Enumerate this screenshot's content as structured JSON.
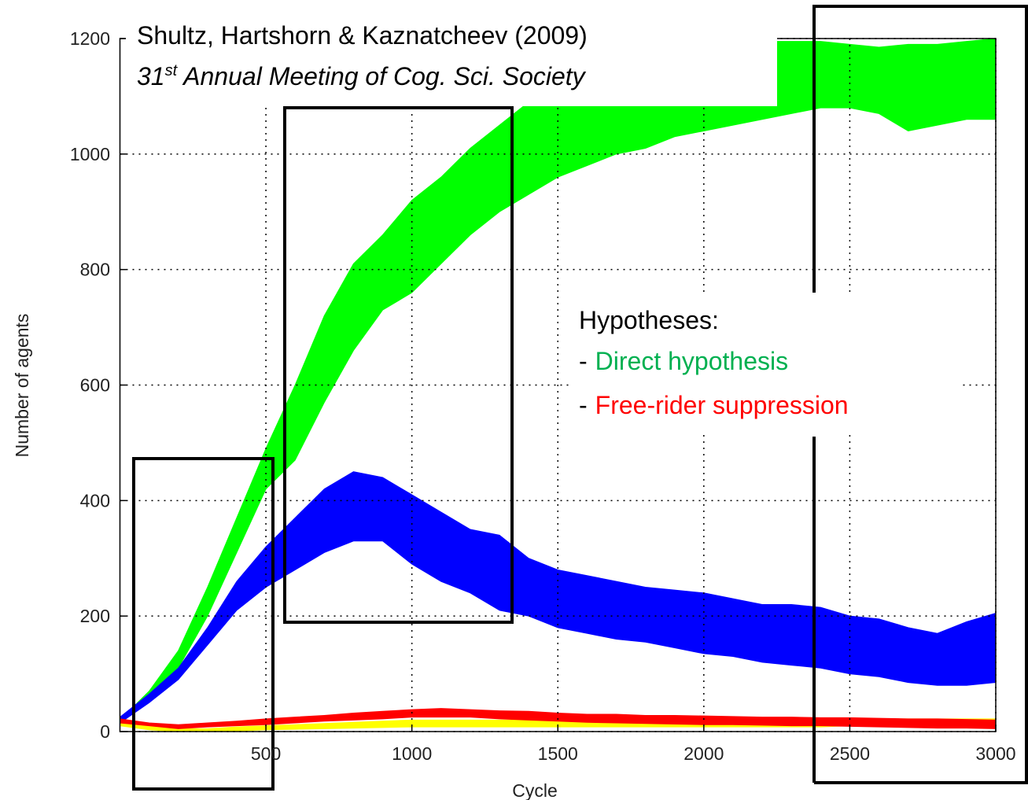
{
  "chart_data": {
    "type": "band",
    "xlabel": "Cycle",
    "ylabel": "Number of agents",
    "x": [
      0,
      100,
      200,
      300,
      400,
      500,
      600,
      700,
      800,
      900,
      1000,
      1100,
      1200,
      1300,
      1400,
      1500,
      1600,
      1700,
      1800,
      1900,
      2000,
      2100,
      2200,
      2300,
      2400,
      2500,
      2600,
      2700,
      2800,
      2900,
      3000
    ],
    "series": [
      {
        "color": "#00ff00",
        "values": [
          20,
          70,
          140,
          250,
          370,
          490,
          600,
          720,
          810,
          860,
          920,
          960,
          1010,
          1050,
          1090,
          1120,
          1140,
          1160,
          1175,
          1185,
          1190,
          1195,
          1195,
          1195,
          1195,
          1190,
          1185,
          1190,
          1190,
          1195,
          1200
        ],
        "lower": [
          15,
          55,
          110,
          200,
          310,
          420,
          470,
          570,
          660,
          730,
          760,
          810,
          860,
          900,
          930,
          960,
          980,
          1000,
          1010,
          1030,
          1040,
          1050,
          1060,
          1070,
          1080,
          1080,
          1070,
          1040,
          1050,
          1060,
          1060
        ]
      },
      {
        "color": "#0000ff",
        "values": [
          25,
          65,
          110,
          180,
          260,
          320,
          370,
          420,
          450,
          440,
          410,
          380,
          350,
          340,
          300,
          280,
          270,
          260,
          250,
          245,
          240,
          230,
          220,
          220,
          215,
          200,
          195,
          180,
          170,
          190,
          205
        ],
        "lower": [
          15,
          50,
          90,
          150,
          210,
          250,
          280,
          310,
          330,
          330,
          290,
          260,
          240,
          210,
          200,
          180,
          170,
          160,
          155,
          145,
          135,
          130,
          120,
          115,
          110,
          100,
          95,
          85,
          80,
          80,
          85
        ]
      },
      {
        "color": "#ffff00",
        "values": [
          18,
          10,
          5,
          5,
          8,
          10,
          12,
          14,
          16,
          18,
          20,
          20,
          20,
          20,
          20,
          20,
          20,
          20,
          20,
          20,
          20,
          20,
          20,
          20,
          20,
          22,
          22,
          22,
          22,
          22,
          22
        ],
        "lower": [
          10,
          3,
          0,
          0,
          1,
          3,
          4,
          5,
          6,
          7,
          8,
          8,
          8,
          8,
          8,
          8,
          8,
          8,
          8,
          8,
          8,
          8,
          8,
          8,
          8,
          10,
          10,
          10,
          10,
          10,
          10
        ]
      },
      {
        "color": "#ff0000",
        "values": [
          22,
          15,
          12,
          15,
          18,
          22,
          25,
          28,
          32,
          35,
          38,
          40,
          38,
          36,
          35,
          32,
          30,
          30,
          28,
          28,
          27,
          26,
          25,
          25,
          24,
          24,
          23,
          22,
          22,
          21,
          20
        ],
        "lower": [
          15,
          10,
          5,
          8,
          10,
          12,
          15,
          18,
          20,
          22,
          25,
          25,
          25,
          22,
          20,
          18,
          16,
          15,
          14,
          13,
          12,
          12,
          11,
          10,
          10,
          9,
          8,
          7,
          6,
          6,
          5
        ]
      }
    ],
    "xlim": [
      0,
      3000
    ],
    "xticks": [
      500,
      1000,
      1500,
      2000,
      2500,
      3000
    ],
    "ylim": [
      0,
      1200
    ],
    "yticks": [
      0,
      200,
      400,
      600,
      800,
      1000,
      1200
    ],
    "grid": true,
    "annotations": {
      "source": "Shultz, Hartshorn & Kaznatcheev (2009)",
      "venue_number": "31",
      "venue_suffix": "st",
      "venue_rest": "Annual Meeting of Cog. Sci. Society",
      "hypotheses_title": "Hypotheses:",
      "bullet": "-",
      "hypotheses": [
        {
          "text": "Direct hypothesis",
          "color": "#00b050"
        },
        {
          "text": "Free-rider suppression",
          "color": "#ff0000"
        }
      ]
    }
  }
}
